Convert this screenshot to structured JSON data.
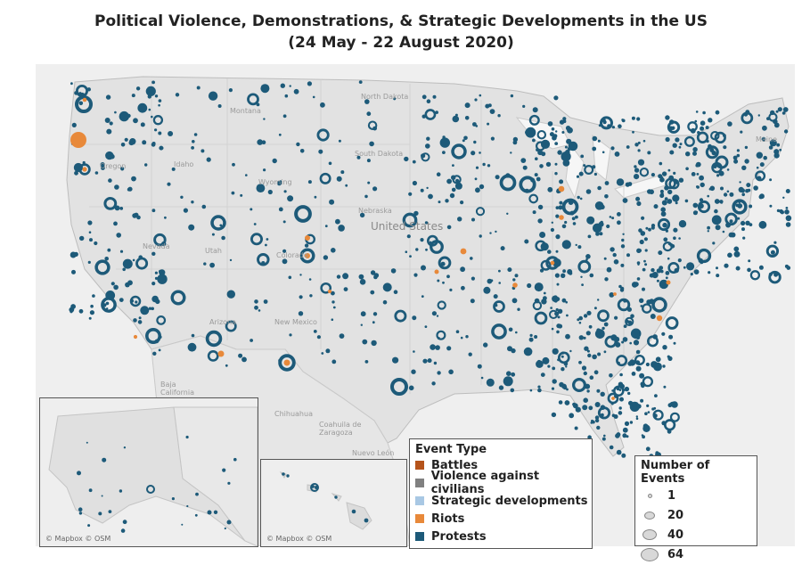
{
  "title": {
    "line1": "Political Violence, Demonstrations, & Strategic Developments in the US",
    "line2": "(24 May - 22 August 2020)"
  },
  "map_labels": {
    "north_dakota": "North Dakota",
    "south_dakota": "South Dakota",
    "montana": "Montana",
    "idaho": "Idaho",
    "oregon": "Oregon",
    "wyoming": "Wyoming",
    "nebraska": "Nebraska",
    "united_states": "United States",
    "nevada": "Nevada",
    "utah": "Utah",
    "colorado": "Colorado",
    "arizona": "Arizona",
    "new_mexico": "New Mexico",
    "chihuahua": "Chihuahua",
    "coahuila": "Coahuila de Zaragoza",
    "nuevo_leon": "Nuevo León",
    "baja": "Baja California",
    "maine": "Maine"
  },
  "insets": {
    "alaska_credit": "© Mapbox © OSM",
    "hawaii_credit": "© Mapbox © OSM"
  },
  "legend_event": {
    "title": "Event Type",
    "items": [
      {
        "label": "Battles",
        "color": "#b5531a"
      },
      {
        "label": "Violence against civilians",
        "color": "#808080"
      },
      {
        "label": "Strategic developments",
        "color": "#a9c8e4"
      },
      {
        "label": "Riots",
        "color": "#e8893a"
      },
      {
        "label": "Protests",
        "color": "#1d5a79"
      }
    ]
  },
  "legend_size": {
    "title": "Number of Events",
    "items": [
      {
        "label": "1",
        "value": 1
      },
      {
        "label": "20",
        "value": 20
      },
      {
        "label": "40",
        "value": 40
      },
      {
        "label": "64",
        "value": 64
      }
    ]
  },
  "colors": {
    "protest": "#1d5a79",
    "riot": "#e8893a",
    "land": "#e4e4e4",
    "water": "#f4f4f4"
  }
}
